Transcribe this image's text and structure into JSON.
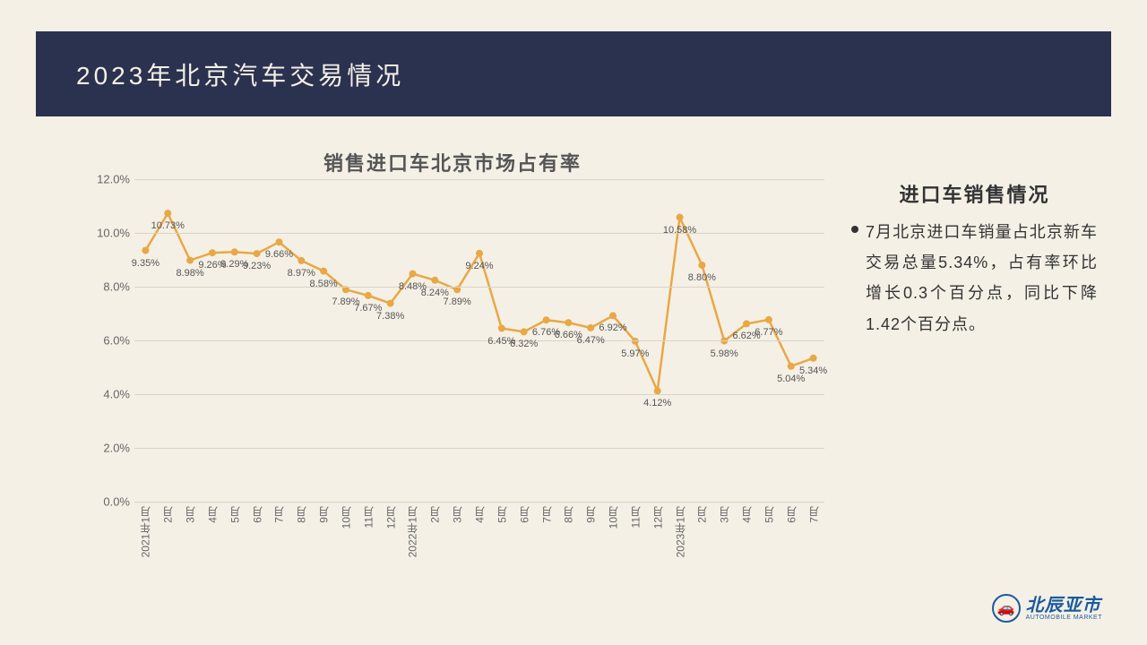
{
  "header": {
    "title": "2023年北京汽车交易情况"
  },
  "chart": {
    "title": "销售进口车北京市场占有率",
    "type": "line",
    "line_color": "#e8a845",
    "marker_color": "#e8a845",
    "line_width": 2.5,
    "marker_size": 4,
    "background_color": "#f5f0e6",
    "grid_color": "#d8d4c8",
    "ylim": [
      0,
      12
    ],
    "ytick_step": 2,
    "y_format": "percent",
    "y_ticks": [
      "0.0%",
      "2.0%",
      "4.0%",
      "6.0%",
      "8.0%",
      "10.0%",
      "12.0%"
    ],
    "x_labels": [
      "2021年1月",
      "2月",
      "3月",
      "4月",
      "5月",
      "6月",
      "7月",
      "8月",
      "9月",
      "10月",
      "11月",
      "12月",
      "2022年1月",
      "2月",
      "3月",
      "4月",
      "5月",
      "6月",
      "7月",
      "8月",
      "9月",
      "10月",
      "11月",
      "12月",
      "2023年1月",
      "2月",
      "3月",
      "4月",
      "5月",
      "6月",
      "7月"
    ],
    "values": [
      9.35,
      10.73,
      8.98,
      9.26,
      9.29,
      9.23,
      9.66,
      8.97,
      8.58,
      7.89,
      7.67,
      7.38,
      8.48,
      8.24,
      7.89,
      9.24,
      6.45,
      6.32,
      6.76,
      6.66,
      6.47,
      6.92,
      5.97,
      4.12,
      10.58,
      8.8,
      5.98,
      6.62,
      6.77,
      5.04,
      5.34
    ],
    "value_labels": [
      "9.35%",
      "10.73%",
      "8.98%",
      "9.26%",
      "9.29%",
      "9.23%",
      "9.66%",
      "8.97%",
      "8.58%",
      "7.89%",
      "7.67%",
      "7.38%",
      "8.48%",
      "8.24%",
      "7.89%",
      "9.24%",
      "6.45%",
      "6.32%",
      "6.76%",
      "6.66%",
      "6.47%",
      "6.92%",
      "5.97%",
      "4.12%",
      "10.58%",
      "8.80%",
      "5.98%",
      "6.62%",
      "6.77%",
      "5.04%",
      "5.34%"
    ],
    "label_fontsize": 11,
    "axis_fontsize": 13
  },
  "side": {
    "title": "进口车销售情况",
    "text": "7月北京进口车销量占北京新车交易总量5.34%，占有率环比增长0.3个百分点，同比下降1.42个百分点。"
  },
  "logo": {
    "cn": "北辰亚市",
    "en": "AUTOMOBILE MARKET"
  }
}
